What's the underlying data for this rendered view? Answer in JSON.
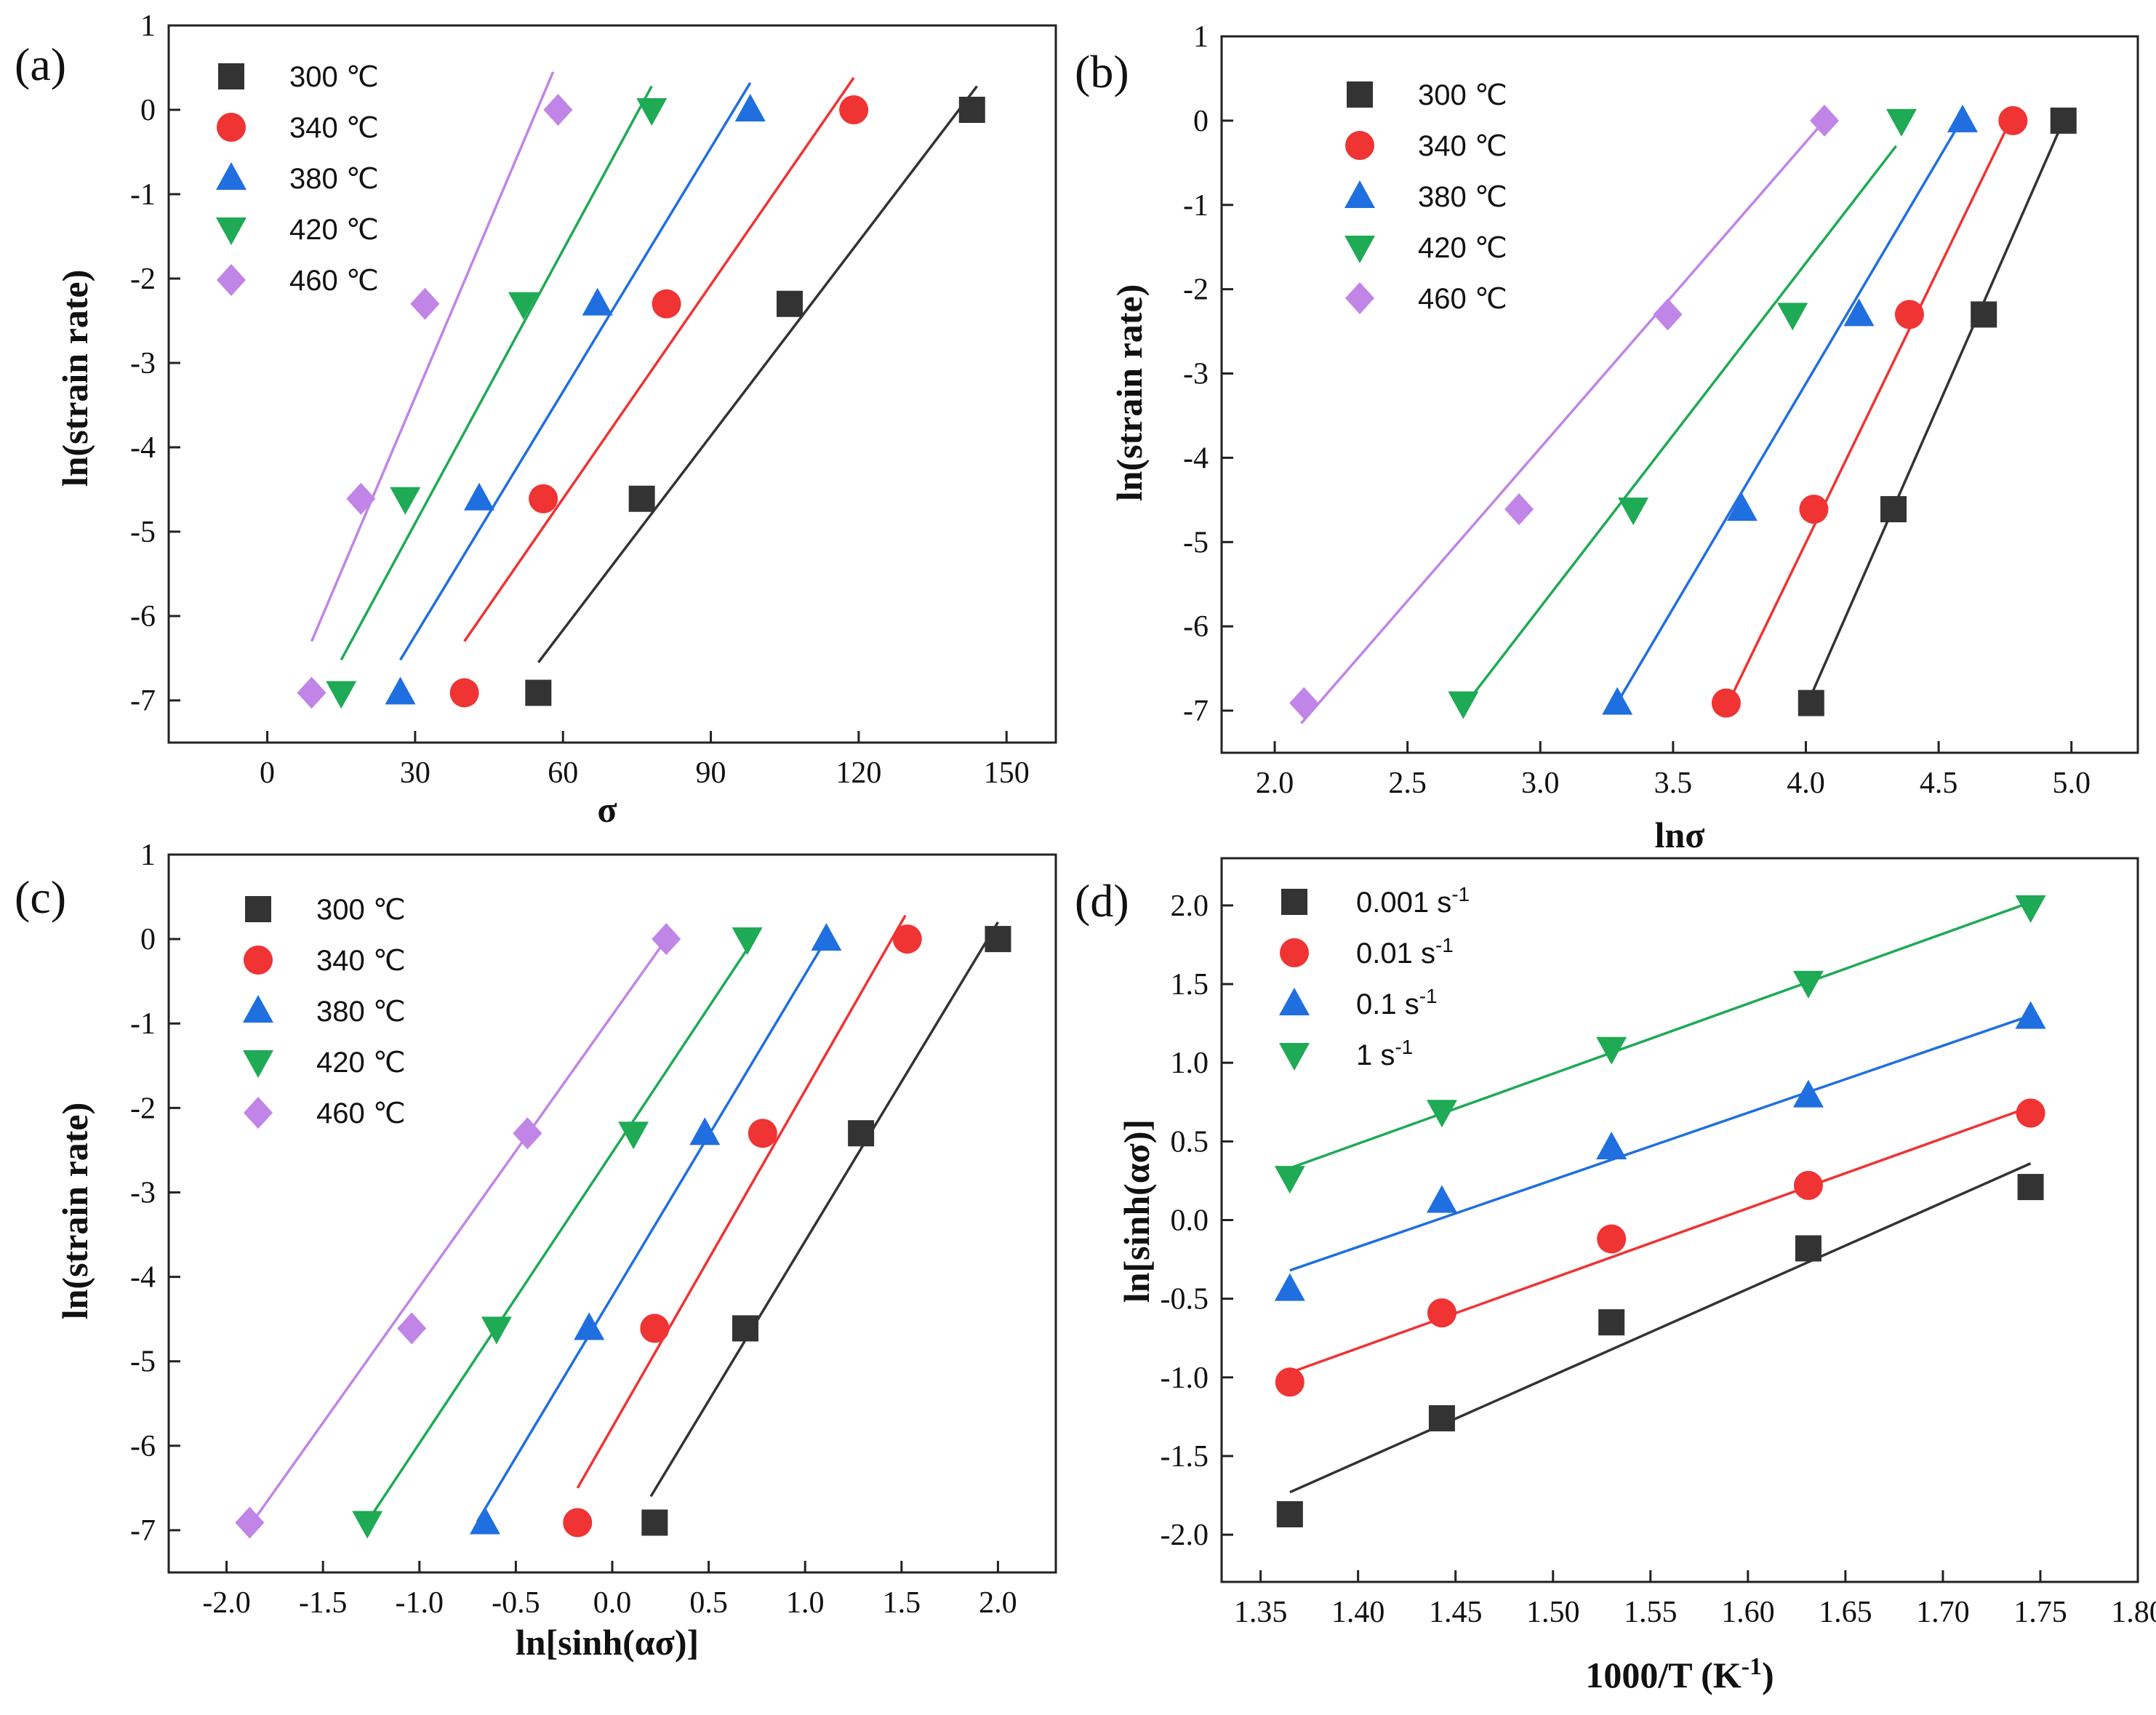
{
  "colors": {
    "black": "#333333",
    "red": "#f03333",
    "blue": "#1f6fe0",
    "green": "#1faa55",
    "purple": "#c085e6"
  },
  "chart_data": [
    {
      "id": "a",
      "type": "scatter",
      "panel_label": "(a)",
      "xlabel": "σ",
      "ylabel": "ln(strain rate)",
      "xlim": [
        -20,
        160
      ],
      "ylim": [
        -7.5,
        1
      ],
      "xticks": [
        0,
        30,
        60,
        90,
        120,
        150
      ],
      "yticks": [
        -7,
        -6,
        -5,
        -4,
        -3,
        -2,
        -1,
        0,
        1
      ],
      "x_tick_labels": [
        "0",
        "30",
        "60",
        "90",
        "120",
        "150"
      ],
      "y_tick_labels": [
        "-7",
        "-6",
        "-5",
        "-4",
        "-3",
        "-2",
        "-1",
        "0",
        "1"
      ],
      "series": [
        {
          "name": "300 ℃",
          "marker": "square",
          "color": "#333333",
          "x": [
            55,
            76,
            106,
            143
          ],
          "y": [
            -6.91,
            -4.61,
            -2.3,
            0
          ],
          "fit": [
            [
              55,
              -6.55
            ],
            [
              144,
              0.28
            ]
          ]
        },
        {
          "name": "340 ℃",
          "marker": "circle",
          "color": "#f03333",
          "x": [
            40,
            56,
            81,
            119
          ],
          "y": [
            -6.91,
            -4.61,
            -2.3,
            0
          ],
          "fit": [
            [
              40,
              -6.3
            ],
            [
              119,
              0.38
            ]
          ]
        },
        {
          "name": "380 ℃",
          "marker": "triangle-up",
          "color": "#1f6fe0",
          "x": [
            27,
            43,
            67,
            98
          ],
          "y": [
            -6.91,
            -4.61,
            -2.3,
            0
          ],
          "fit": [
            [
              27,
              -6.52
            ],
            [
              98,
              0.32
            ]
          ]
        },
        {
          "name": "420 ℃",
          "marker": "triangle-down",
          "color": "#1faa55",
          "x": [
            15,
            28,
            52,
            78
          ],
          "y": [
            -6.91,
            -4.61,
            -2.3,
            0
          ],
          "fit": [
            [
              15,
              -6.52
            ],
            [
              78,
              0.28
            ]
          ]
        },
        {
          "name": "460 ℃",
          "marker": "diamond",
          "color": "#c085e6",
          "x": [
            9,
            19,
            32,
            59
          ],
          "y": [
            -6.91,
            -4.61,
            -2.3,
            0
          ],
          "fit": [
            [
              9,
              -6.3
            ],
            [
              58,
              0.45
            ]
          ]
        }
      ]
    },
    {
      "id": "b",
      "type": "scatter",
      "panel_label": "(b)",
      "xlabel": "lnσ",
      "ylabel": "ln(strain rate)",
      "xlim": [
        1.8,
        5.25
      ],
      "ylim": [
        -7.5,
        1
      ],
      "xticks": [
        2.0,
        2.5,
        3.0,
        3.5,
        4.0,
        4.5,
        5.0
      ],
      "yticks": [
        -7,
        -6,
        -5,
        -4,
        -3,
        -2,
        -1,
        0,
        1
      ],
      "x_tick_labels": [
        "2.0",
        "2.5",
        "3.0",
        "3.5",
        "4.0",
        "4.5",
        "5.0"
      ],
      "y_tick_labels": [
        "-7",
        "-6",
        "-5",
        "-4",
        "-3",
        "-2",
        "-1",
        "0",
        "1"
      ],
      "series": [
        {
          "name": "300 ℃",
          "marker": "square",
          "color": "#333333",
          "x": [
            4.02,
            4.33,
            4.67,
            4.97
          ],
          "y": [
            -6.91,
            -4.61,
            -2.3,
            0
          ],
          "fit": [
            [
              4.0,
              -6.96
            ],
            [
              4.97,
              0.0
            ]
          ]
        },
        {
          "name": "340 ℃",
          "marker": "circle",
          "color": "#f03333",
          "x": [
            3.7,
            4.03,
            4.39,
            4.78
          ],
          "y": [
            -6.91,
            -4.61,
            -2.3,
            0
          ],
          "fit": [
            [
              3.7,
              -6.96
            ],
            [
              4.77,
              0.0
            ]
          ]
        },
        {
          "name": "380 ℃",
          "marker": "triangle-up",
          "color": "#1f6fe0",
          "x": [
            3.29,
            3.76,
            4.2,
            4.59
          ],
          "y": [
            -6.91,
            -4.61,
            -2.3,
            0
          ],
          "fit": [
            [
              3.28,
              -6.96
            ],
            [
              4.57,
              -0.08
            ]
          ]
        },
        {
          "name": "420 ℃",
          "marker": "triangle-down",
          "color": "#1faa55",
          "x": [
            2.71,
            3.35,
            3.95,
            4.36
          ],
          "y": [
            -6.91,
            -4.61,
            -2.3,
            0
          ],
          "fit": [
            [
              2.7,
              -7.0
            ],
            [
              4.34,
              -0.3
            ]
          ]
        },
        {
          "name": "460 ℃",
          "marker": "diamond",
          "color": "#c085e6",
          "x": [
            2.11,
            2.92,
            3.48,
            4.07
          ],
          "y": [
            -6.91,
            -4.61,
            -2.3,
            0
          ],
          "fit": [
            [
              2.1,
              -7.15
            ],
            [
              4.07,
              0.0
            ]
          ]
        }
      ]
    },
    {
      "id": "c",
      "type": "scatter",
      "panel_label": "(c)",
      "xlabel": "ln[sinh(ασ)]",
      "ylabel": "ln(strain rate)",
      "xlim": [
        -2.3,
        2.3
      ],
      "ylim": [
        -7.5,
        1
      ],
      "xticks": [
        -2.0,
        -1.5,
        -1.0,
        -0.5,
        0.0,
        0.5,
        1.0,
        1.5,
        2.0
      ],
      "yticks": [
        -7,
        -6,
        -5,
        -4,
        -3,
        -2,
        -1,
        0,
        1
      ],
      "x_tick_labels": [
        "-2.0",
        "-1.5",
        "-1.0",
        "-0.5",
        "0.0",
        "0.5",
        "1.0",
        "1.5",
        "2.0"
      ],
      "y_tick_labels": [
        "-7",
        "-6",
        "-5",
        "-4",
        "-3",
        "-2",
        "-1",
        "0",
        "1"
      ],
      "series": [
        {
          "name": "300 ℃",
          "marker": "square",
          "color": "#333333",
          "x": [
            0.22,
            0.69,
            1.29,
            2.0
          ],
          "y": [
            -6.91,
            -4.61,
            -2.3,
            0
          ],
          "fit": [
            [
              0.2,
              -6.6
            ],
            [
              2.0,
              0.2
            ]
          ]
        },
        {
          "name": "340 ℃",
          "marker": "circle",
          "color": "#f03333",
          "x": [
            -0.18,
            0.22,
            0.78,
            1.53
          ],
          "y": [
            -6.91,
            -4.61,
            -2.3,
            0
          ],
          "fit": [
            [
              -0.18,
              -6.5
            ],
            [
              1.52,
              0.28
            ]
          ]
        },
        {
          "name": "380 ℃",
          "marker": "triangle-up",
          "color": "#1f6fe0",
          "x": [
            -0.66,
            -0.12,
            0.48,
            1.11
          ],
          "y": [
            -6.91,
            -4.61,
            -2.3,
            0
          ],
          "fit": [
            [
              -0.7,
              -6.9
            ],
            [
              1.11,
              0.0
            ]
          ]
        },
        {
          "name": "420 ℃",
          "marker": "triangle-down",
          "color": "#1faa55",
          "x": [
            -1.27,
            -0.6,
            0.11,
            0.7
          ],
          "y": [
            -6.91,
            -4.61,
            -2.3,
            0
          ],
          "fit": [
            [
              -1.27,
              -6.9
            ],
            [
              0.72,
              -0.05
            ]
          ]
        },
        {
          "name": "460 ℃",
          "marker": "diamond",
          "color": "#c085e6",
          "x": [
            -1.88,
            -1.04,
            -0.44,
            0.28
          ],
          "y": [
            -6.91,
            -4.61,
            -2.3,
            0
          ],
          "fit": [
            [
              -1.88,
              -6.95
            ],
            [
              0.28,
              0.0
            ]
          ]
        }
      ]
    },
    {
      "id": "d",
      "type": "scatter",
      "panel_label": "(d)",
      "xlabel": "1000/T (K",
      "xlabel_sup": "-1",
      "xlabel_end": ")",
      "ylabel": "ln[sinh(ασ)]",
      "xlim": [
        1.33,
        1.8
      ],
      "ylim": [
        -2.3,
        2.3
      ],
      "xticks": [
        1.35,
        1.4,
        1.45,
        1.5,
        1.55,
        1.6,
        1.65,
        1.7,
        1.75,
        1.8
      ],
      "yticks": [
        -2.0,
        -1.5,
        -1.0,
        -0.5,
        0.0,
        0.5,
        1.0,
        1.5,
        2.0
      ],
      "x_tick_labels": [
        "1.35",
        "1.40",
        "1.45",
        "1.50",
        "1.55",
        "1.60",
        "1.65",
        "1.70",
        "1.75",
        "1.80"
      ],
      "y_tick_labels": [
        "-2.0",
        "-1.5",
        "-1.0",
        "-0.5",
        "0.0",
        "0.5",
        "1.0",
        "1.5",
        "2.0"
      ],
      "series": [
        {
          "name": "0.001 s",
          "name_sup": "-1",
          "marker": "square",
          "color": "#333333",
          "x": [
            1.365,
            1.443,
            1.53,
            1.631,
            1.745
          ],
          "y": [
            -1.87,
            -1.26,
            -0.65,
            -0.18,
            0.21
          ],
          "fit": [
            [
              1.365,
              -1.73
            ],
            [
              1.745,
              0.36
            ]
          ]
        },
        {
          "name": "0.01 s",
          "name_sup": "-1",
          "marker": "circle",
          "color": "#f03333",
          "x": [
            1.365,
            1.443,
            1.53,
            1.631,
            1.745
          ],
          "y": [
            -1.03,
            -0.59,
            -0.12,
            0.22,
            0.68
          ],
          "fit": [
            [
              1.365,
              -0.97
            ],
            [
              1.745,
              0.72
            ]
          ]
        },
        {
          "name": "0.1 s",
          "name_sup": "-1",
          "marker": "triangle-up",
          "color": "#1f6fe0",
          "x": [
            1.365,
            1.443,
            1.53,
            1.631,
            1.745
          ],
          "y": [
            -0.44,
            0.12,
            0.46,
            0.79,
            1.29
          ],
          "fit": [
            [
              1.365,
              -0.32
            ],
            [
              1.745,
              1.3
            ]
          ]
        },
        {
          "name": "1 s",
          "name_sup": "-1",
          "marker": "triangle-down",
          "color": "#1faa55",
          "x": [
            1.365,
            1.443,
            1.53,
            1.631,
            1.745
          ],
          "y": [
            0.27,
            0.69,
            1.09,
            1.51,
            1.99
          ],
          "fit": [
            [
              1.365,
              0.33
            ],
            [
              1.745,
              2.02
            ]
          ]
        }
      ]
    }
  ]
}
